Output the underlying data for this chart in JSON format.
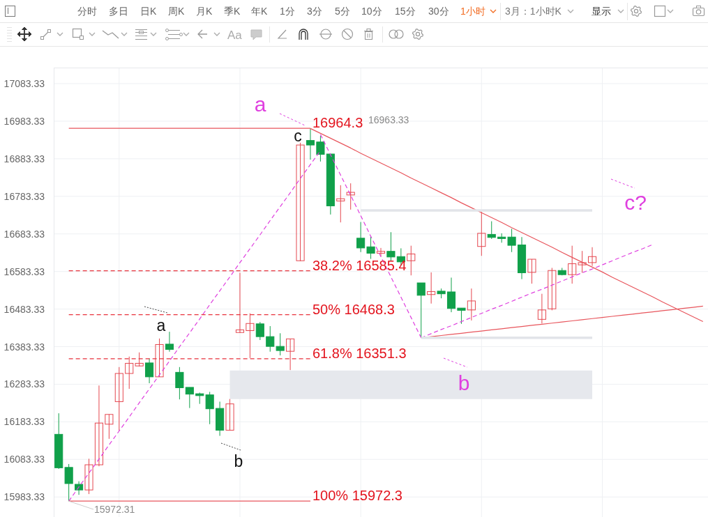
{
  "chart_data": {
    "type": "candlestick",
    "categories": [
      null,
      null,
      null,
      null,
      null,
      null,
      null,
      null,
      null,
      null,
      null,
      null,
      null,
      null,
      null,
      null,
      null,
      null,
      null,
      null,
      null,
      null,
      null,
      null,
      null,
      null,
      null,
      null,
      null,
      null,
      null,
      null,
      null,
      null,
      null,
      null,
      null,
      null,
      null,
      null,
      null,
      null,
      null,
      null,
      null,
      null,
      null,
      null,
      null,
      null,
      null,
      null,
      null,
      null,
      null,
      null,
      null,
      null,
      null,
      null,
      null,
      null,
      null,
      null,
      null
    ],
    "ohlc": [
      [
        16150,
        16206,
        16058,
        16061
      ],
      [
        16062,
        16071,
        15972.31,
        16019
      ],
      [
        16017,
        16025,
        15989,
        16002
      ],
      [
        16002,
        16085,
        15991,
        16069
      ],
      [
        16069,
        16280,
        16065,
        16180
      ],
      [
        16177,
        16203,
        16138,
        16203
      ],
      [
        16237,
        16329,
        16160,
        16312
      ],
      [
        16312,
        16357,
        16271,
        16339
      ],
      [
        16332,
        16368,
        16331,
        16339
      ],
      [
        16340,
        16352,
        16286,
        16303
      ],
      [
        16303,
        16405,
        16303,
        16389
      ],
      [
        16390,
        16423,
        16370,
        16376
      ],
      [
        16315,
        16329,
        16243,
        16274
      ],
      [
        16275,
        16275,
        16220,
        16257
      ],
      [
        16258,
        16261,
        16231,
        16253
      ],
      [
        16255,
        16263,
        16177,
        16218
      ],
      [
        16219,
        16237,
        16146,
        16161
      ],
      [
        16161,
        16244,
        16160,
        16231
      ],
      [
        16421,
        16580,
        16420,
        16428
      ],
      [
        16426,
        16472,
        16353,
        16445
      ],
      [
        16444,
        16449,
        16401,
        16410
      ],
      [
        16410,
        16438,
        16370,
        16384
      ],
      [
        16384,
        16419,
        16360,
        16373
      ],
      [
        16371,
        16404,
        16321,
        16404
      ],
      [
        16612,
        16926,
        16611,
        16920
      ],
      [
        16932,
        16963.33,
        16881,
        16920
      ],
      [
        16928,
        16944,
        16876,
        16895
      ],
      [
        16896,
        16896,
        16735,
        16758
      ],
      [
        16771,
        16813,
        16714,
        16777
      ],
      [
        16787,
        16818,
        16748,
        16794
      ],
      [
        16672,
        16715,
        16635,
        16646
      ],
      [
        16649,
        16677,
        16617,
        16632
      ],
      [
        16632,
        16646,
        16623,
        16637
      ],
      [
        16637,
        16688,
        16612,
        16622
      ],
      [
        16623,
        16645,
        16601,
        16609
      ],
      [
        16612,
        16652,
        16573,
        16630
      ],
      [
        16553,
        16553,
        16407,
        16520
      ],
      [
        16522,
        16581,
        16498,
        16530
      ],
      [
        16531,
        16538,
        16512,
        16524
      ],
      [
        16529,
        16567,
        16475,
        16485
      ],
      [
        16486,
        16486,
        16444,
        16480
      ],
      [
        16481,
        16538,
        16453,
        16505
      ],
      [
        16650,
        16742,
        16625,
        16685
      ],
      [
        16682,
        16717,
        16670,
        16674
      ],
      [
        16675,
        16685,
        16660,
        16671
      ],
      [
        16675,
        16697,
        16635,
        16653
      ],
      [
        16654,
        16675,
        16563,
        16580
      ],
      [
        16581,
        16616,
        16551,
        16616
      ],
      [
        16456,
        16524,
        16445,
        16481
      ],
      [
        16484,
        16593,
        16480,
        16586
      ],
      [
        16586,
        16593,
        16573,
        16575
      ],
      [
        16575,
        16652,
        16551,
        16604
      ],
      [
        16601,
        16638,
        16580,
        16607
      ],
      [
        16607,
        16648,
        16598,
        16623
      ],
      null,
      null,
      null,
      null,
      null,
      null,
      null,
      null,
      null,
      null,
      null
    ],
    "colors": [
      "#10a04a",
      "#10a04a",
      "#10a04a",
      "#e5474f",
      "#e5474f",
      "#e5474f",
      "#e5474f",
      "#e5474f",
      "#e5474f",
      "#10a04a",
      "#e5474f",
      "#10a04a",
      "#10a04a",
      "#10a04a",
      "#10a04a",
      "#10a04a",
      "#10a04a",
      "#e5474f",
      "#e5474f",
      "#e5474f",
      "#10a04a",
      "#10a04a",
      "#10a04a",
      "#e5474f",
      "#e5474f",
      "#10a04a",
      "#10a04a",
      "#10a04a",
      "#e5474f",
      "#e5474f",
      "#10a04a",
      "#10a04a",
      "#e5474f",
      "#10a04a",
      "#10a04a",
      "#e5474f",
      "#10a04a",
      "#e5474f",
      "#10a04a",
      "#10a04a",
      "#10a04a",
      "#e5474f",
      "#e5474f",
      "#10a04a",
      "#10a04a",
      "#10a04a",
      "#10a04a",
      "#e5474f",
      "#e5474f",
      "#e5474f",
      "#10a04a",
      "#e5474f",
      "#e5474f",
      "#e5474f",
      null,
      null,
      null,
      null,
      null,
      null,
      null,
      null,
      null,
      null,
      null
    ],
    "series": [
      {
        "type": "line",
        "color": "#df3fdf",
        "line_style": "dashed",
        "values": [
          null,
          15972,
          16010,
          16047,
          16084,
          16122,
          16159,
          16196,
          16234,
          16271,
          16308,
          16345,
          16383,
          16420,
          16457,
          16495,
          16532,
          16569,
          16607,
          16644,
          16681,
          16719,
          16756,
          16793,
          16831,
          16868,
          16905,
          null,
          null,
          null,
          null,
          null,
          null,
          null,
          null,
          null,
          null,
          null,
          null,
          null,
          null,
          null,
          null,
          null,
          null,
          null,
          null,
          null,
          null,
          null,
          null,
          null,
          null,
          null,
          null,
          null,
          null,
          null,
          null,
          null,
          null,
          null,
          null,
          null,
          null
        ]
      },
      {
        "type": "line",
        "color": "#df3fdf",
        "line_style": "dashed",
        "values": [
          null,
          null,
          null,
          null,
          null,
          null,
          null,
          null,
          null,
          null,
          null,
          null,
          null,
          null,
          null,
          null,
          null,
          null,
          null,
          null,
          null,
          null,
          null,
          null,
          null,
          null,
          16948,
          16894,
          16840,
          16786,
          16732,
          16677,
          16623,
          16569,
          16515,
          16461,
          16407,
          null,
          null,
          null,
          null,
          null,
          null,
          null,
          null,
          null,
          null,
          null,
          null,
          null,
          null,
          null,
          null,
          null,
          null,
          null,
          null,
          null,
          null,
          null,
          null,
          null,
          null,
          null,
          null
        ]
      },
      {
        "type": "line",
        "color": "#df3fdf",
        "line_style": "dashed",
        "values": [
          null,
          null,
          null,
          null,
          null,
          null,
          null,
          null,
          null,
          null,
          null,
          null,
          null,
          null,
          null,
          null,
          null,
          null,
          null,
          null,
          null,
          null,
          null,
          null,
          null,
          null,
          null,
          null,
          null,
          null,
          null,
          null,
          null,
          null,
          null,
          null,
          16407,
          16418,
          16429,
          16439,
          16450,
          16461,
          16472,
          16483,
          16493,
          16504,
          16515,
          16526,
          16536,
          16547,
          16558,
          16569,
          16580,
          16590,
          16601,
          16612,
          16623,
          16634,
          16644,
          16655,
          null,
          null,
          null,
          null,
          null
        ]
      },
      {
        "type": "line",
        "color": "#e8555c",
        "line_style": "solid",
        "values": [
          null,
          null,
          null,
          null,
          null,
          null,
          null,
          null,
          null,
          null,
          null,
          null,
          null,
          null,
          null,
          null,
          null,
          null,
          null,
          null,
          null,
          null,
          null,
          null,
          null,
          16964,
          16951,
          16938,
          16925,
          16912,
          16898,
          16885,
          16872,
          16859,
          16846,
          16832,
          16819,
          16806,
          16793,
          16780,
          16766,
          16753,
          16740,
          16727,
          16714,
          16700,
          16687,
          16674,
          16661,
          16648,
          16634,
          16621,
          16608,
          16595,
          16582,
          16568,
          16555,
          16542,
          16529,
          16516,
          16502,
          16489,
          16476,
          16463,
          16450
        ]
      },
      {
        "type": "line",
        "color": "#e8555c",
        "line_style": "solid",
        "values": [
          null,
          null,
          null,
          null,
          null,
          null,
          null,
          null,
          null,
          null,
          null,
          null,
          null,
          null,
          null,
          null,
          null,
          null,
          null,
          null,
          null,
          null,
          null,
          null,
          null,
          null,
          null,
          null,
          null,
          null,
          null,
          null,
          null,
          null,
          null,
          null,
          16407,
          16410,
          16413,
          16416,
          16419,
          16422,
          16425,
          16428,
          16431,
          16434,
          16437,
          16440,
          16443,
          16446,
          16449,
          16452,
          16455,
          16458,
          16461,
          16464,
          16467,
          16470,
          16473,
          16476,
          16479,
          16482,
          16485,
          16488,
          16491
        ]
      },
      {
        "type": "line",
        "name": "16964.3",
        "color": "#e8555c",
        "line_style": "solid",
        "values": [
          null,
          16964.3,
          16964.3,
          16964.3,
          16964.3,
          16964.3,
          16964.3,
          16964.3,
          16964.3,
          16964.3,
          16964.3,
          16964.3,
          16964.3,
          16964.3,
          16964.3,
          16964.3,
          16964.3,
          16964.3,
          16964.3,
          16964.3,
          16964.3,
          16964.3,
          16964.3,
          16964.3,
          16964.3,
          16964.3,
          null,
          null,
          null,
          null,
          null,
          null,
          null,
          null,
          null,
          null,
          null,
          null,
          null,
          null,
          null,
          null,
          null,
          null,
          null,
          null,
          null,
          null,
          null,
          null,
          null,
          null,
          null,
          null,
          null,
          null,
          null,
          null,
          null,
          null,
          null,
          null,
          null,
          null,
          null
        ]
      },
      {
        "type": "line",
        "name": "38.2% 16585.4",
        "color": "#e8323c",
        "line_style": "dashed",
        "values": [
          null,
          16585.4,
          16585.4,
          16585.4,
          16585.4,
          16585.4,
          16585.4,
          16585.4,
          16585.4,
          16585.4,
          16585.4,
          16585.4,
          16585.4,
          16585.4,
          16585.4,
          16585.4,
          16585.4,
          16585.4,
          16585.4,
          16585.4,
          16585.4,
          16585.4,
          16585.4,
          16585.4,
          16585.4,
          16585.4,
          null,
          null,
          null,
          null,
          null,
          null,
          null,
          null,
          null,
          null,
          null,
          null,
          null,
          null,
          null,
          null,
          null,
          null,
          null,
          null,
          null,
          null,
          null,
          null,
          null,
          null,
          null,
          null,
          null,
          null,
          null,
          null,
          null,
          null,
          null,
          null,
          null,
          null,
          null
        ]
      },
      {
        "type": "line",
        "name": "50% 16468.3",
        "color": "#e8323c",
        "line_style": "dashed",
        "values": [
          null,
          16468.3,
          16468.3,
          16468.3,
          16468.3,
          16468.3,
          16468.3,
          16468.3,
          16468.3,
          16468.3,
          16468.3,
          16468.3,
          16468.3,
          16468.3,
          16468.3,
          16468.3,
          16468.3,
          16468.3,
          16468.3,
          16468.3,
          16468.3,
          16468.3,
          16468.3,
          16468.3,
          16468.3,
          16468.3,
          null,
          null,
          null,
          null,
          null,
          null,
          null,
          null,
          null,
          null,
          null,
          null,
          null,
          null,
          null,
          null,
          null,
          null,
          null,
          null,
          null,
          null,
          null,
          null,
          null,
          null,
          null,
          null,
          null,
          null,
          null,
          null,
          null,
          null,
          null,
          null,
          null,
          null,
          null
        ]
      },
      {
        "type": "line",
        "name": "61.8% 16351.3",
        "color": "#e8323c",
        "line_style": "dashed",
        "values": [
          null,
          16351.3,
          16351.3,
          16351.3,
          16351.3,
          16351.3,
          16351.3,
          16351.3,
          16351.3,
          16351.3,
          16351.3,
          16351.3,
          16351.3,
          16351.3,
          16351.3,
          16351.3,
          16351.3,
          16351.3,
          16351.3,
          16351.3,
          16351.3,
          16351.3,
          16351.3,
          16351.3,
          16351.3,
          16351.3,
          null,
          null,
          null,
          null,
          null,
          null,
          null,
          null,
          null,
          null,
          null,
          null,
          null,
          null,
          null,
          null,
          null,
          null,
          null,
          null,
          null,
          null,
          null,
          null,
          null,
          null,
          null,
          null,
          null,
          null,
          null,
          null,
          null,
          null,
          null,
          null,
          null,
          null,
          null
        ]
      },
      {
        "type": "line",
        "name": "100% 15972.3",
        "color": "#e8555c",
        "line_style": "solid",
        "values": [
          null,
          15972.3,
          15972.3,
          15972.3,
          15972.3,
          15972.3,
          15972.3,
          15972.3,
          15972.3,
          15972.3,
          15972.3,
          15972.3,
          15972.3,
          15972.3,
          15972.3,
          15972.3,
          15972.3,
          15972.3,
          15972.3,
          15972.3,
          15972.3,
          15972.3,
          15972.3,
          15972.3,
          15972.3,
          15972.3,
          null,
          null,
          null,
          null,
          null,
          null,
          null,
          null,
          null,
          null,
          null,
          null,
          null,
          null,
          null,
          null,
          null,
          null,
          null,
          null,
          null,
          null,
          null,
          null,
          null,
          null,
          null,
          null,
          null,
          null,
          null,
          null,
          null,
          null,
          null,
          null,
          null,
          null,
          null
        ]
      },
      {
        "type": "line",
        "color": "#e2e4e9",
        "line_style": "solid",
        "values": [
          null,
          null,
          null,
          null,
          null,
          null,
          null,
          null,
          null,
          null,
          null,
          null,
          null,
          null,
          null,
          null,
          null,
          null,
          null,
          null,
          null,
          null,
          null,
          null,
          null,
          null,
          null,
          null,
          null,
          null,
          16746,
          16746,
          16746,
          16746,
          16746,
          16746,
          16746,
          16746,
          16746,
          16746,
          16746,
          16746,
          16746,
          16746,
          16746,
          16746,
          16746,
          16746,
          16746,
          16746,
          16746,
          16746,
          16746,
          16746,
          null,
          null,
          null,
          null,
          null,
          null,
          null,
          null,
          null,
          null,
          null
        ]
      },
      {
        "type": "line",
        "color": "#e2e4e9",
        "line_style": "solid",
        "values": [
          null,
          null,
          null,
          null,
          null,
          null,
          null,
          null,
          null,
          null,
          null,
          null,
          null,
          null,
          null,
          null,
          null,
          null,
          null,
          null,
          null,
          null,
          null,
          null,
          null,
          null,
          null,
          null,
          null,
          null,
          null,
          null,
          null,
          null,
          null,
          null,
          16407,
          16407,
          16407,
          16407,
          16407,
          16407,
          16407,
          16407,
          16407,
          16407,
          16407,
          16407,
          16407,
          16407,
          16407,
          16407,
          16407,
          16407,
          null,
          null,
          null,
          null,
          null,
          null,
          null,
          null,
          null,
          null,
          null
        ]
      },
      {
        "type": "line",
        "color": "#e6e8ed",
        "values": [
          null,
          null,
          null,
          null,
          null,
          null,
          null,
          null,
          null,
          null,
          null,
          null,
          null,
          null,
          null,
          null,
          null,
          null,
          null,
          null,
          null,
          null,
          null,
          null,
          null,
          null,
          null,
          null,
          null,
          null,
          null,
          null,
          null,
          null,
          null,
          null,
          null,
          null,
          null,
          null,
          null,
          null,
          null,
          null,
          null,
          null,
          null,
          null,
          null,
          null,
          null,
          null,
          null,
          null,
          null,
          null,
          null,
          null,
          null,
          null,
          null,
          null,
          null,
          null,
          null
        ],
        "upper": [
          null,
          null,
          null,
          null,
          null,
          null,
          null,
          null,
          null,
          null,
          null,
          null,
          null,
          null,
          null,
          null,
          null,
          16320,
          16320,
          16320,
          16320,
          16320,
          16320,
          16320,
          16320,
          16320,
          16320,
          16320,
          16320,
          16320,
          16320,
          16320,
          16320,
          16320,
          16320,
          16320,
          16320,
          16320,
          16320,
          16320,
          16320,
          16320,
          16320,
          16320,
          16320,
          16320,
          16320,
          16320,
          16320,
          16320,
          16320,
          16320,
          16320,
          16320,
          null,
          null,
          null,
          null,
          null,
          null,
          null,
          null,
          null,
          null,
          null
        ],
        "lower": [
          null,
          null,
          null,
          null,
          null,
          null,
          null,
          null,
          null,
          null,
          null,
          null,
          null,
          null,
          null,
          null,
          null,
          16244,
          16244,
          16244,
          16244,
          16244,
          16244,
          16244,
          16244,
          16244,
          16244,
          16244,
          16244,
          16244,
          16244,
          16244,
          16244,
          16244,
          16244,
          16244,
          16244,
          16244,
          16244,
          16244,
          16244,
          16244,
          16244,
          16244,
          16244,
          16244,
          16244,
          16244,
          16244,
          16244,
          16244,
          16244,
          16244,
          16244,
          null,
          null,
          null,
          null,
          null,
          null,
          null,
          null,
          null,
          null,
          null
        ]
      }
    ],
    "ylim": [
      15930,
      17126
    ],
    "yticks": [
      15983.33,
      16083.33,
      16183.33,
      16283.33,
      16383.33,
      16483.33,
      16583.33,
      16683.33,
      16783.33,
      16883.33,
      16983.33,
      17083.33
    ],
    "grid": true,
    "annotations": [
      "a",
      "b",
      "c?",
      "a",
      "b",
      "c",
      "16963.33",
      "15972.31",
      "分时",
      "多日",
      "日K",
      "周K",
      "月K",
      "季K",
      "年K",
      "1分",
      "3分",
      "5分",
      "10分",
      "15分",
      "30分",
      "1小时",
      "3月：1小时K",
      "显示",
      "Aa"
    ]
  }
}
